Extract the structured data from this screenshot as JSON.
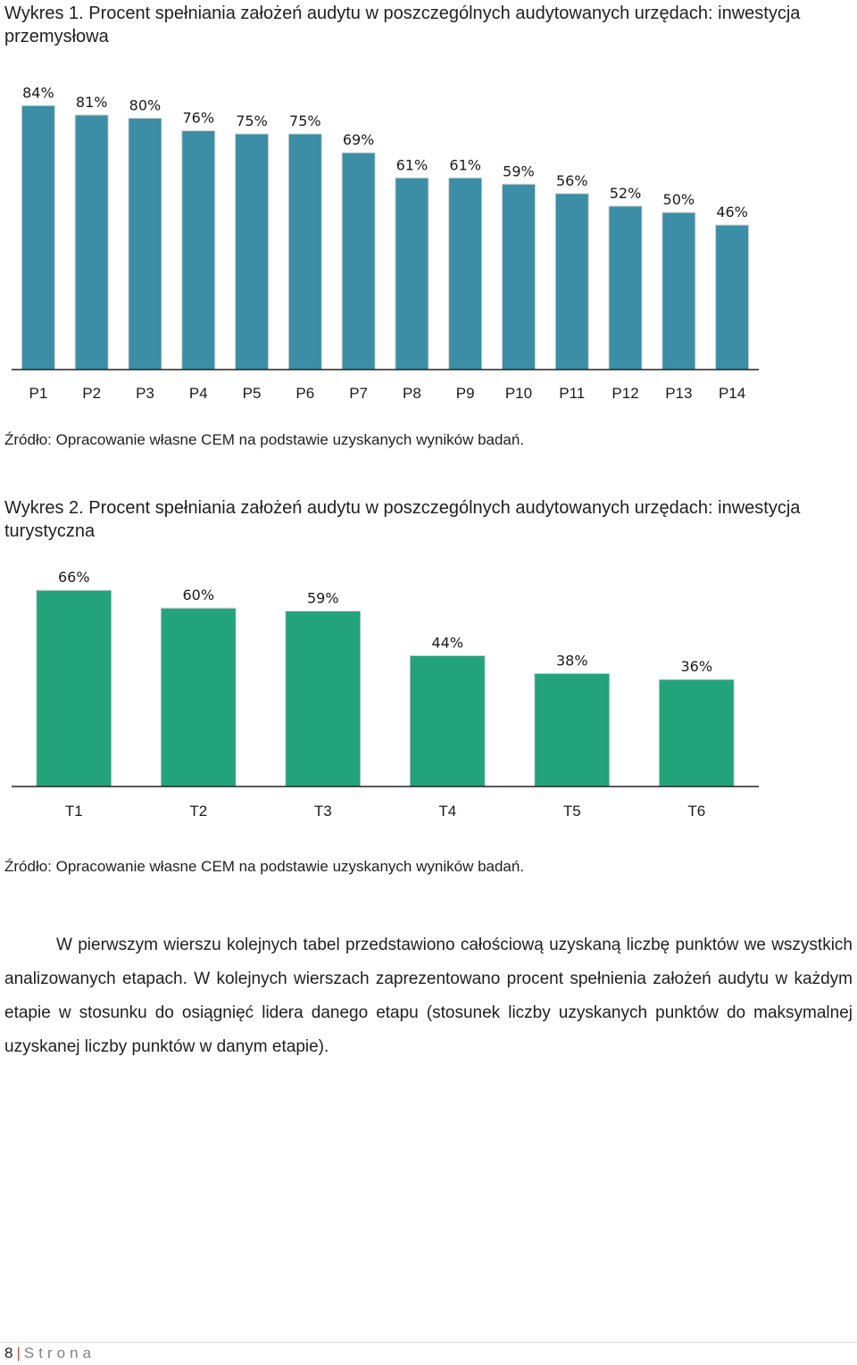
{
  "chart_data": [
    {
      "type": "bar",
      "title": "Wykres 1. Procent spełniania założeń audytu w poszczególnych audytowanych urzędach: inwestycja przemysłowa",
      "categories": [
        "P1",
        "P2",
        "P3",
        "P4",
        "P5",
        "P6",
        "P7",
        "P8",
        "P9",
        "P10",
        "P11",
        "P12",
        "P13",
        "P14"
      ],
      "values": [
        84,
        81,
        80,
        76,
        75,
        75,
        69,
        61,
        61,
        59,
        56,
        52,
        50,
        46
      ],
      "value_labels": [
        "84%",
        "81%",
        "80%",
        "76%",
        "75%",
        "75%",
        "69%",
        "61%",
        "61%",
        "59%",
        "56%",
        "52%",
        "50%",
        "46%"
      ],
      "ylim": [
        0,
        100
      ],
      "xlabel": "",
      "ylabel": "",
      "color": "#3b8ea5",
      "source": "Źródło: Opracowanie własne CEM na podstawie uzyskanych wyników badań."
    },
    {
      "type": "bar",
      "title": "Wykres 2. Procent spełniania założeń audytu w poszczególnych audytowanych urzędach: inwestycja turystyczna",
      "categories": [
        "T1",
        "T2",
        "T3",
        "T4",
        "T5",
        "T6"
      ],
      "values": [
        66,
        60,
        59,
        44,
        38,
        36
      ],
      "value_labels": [
        "66%",
        "60%",
        "59%",
        "44%",
        "38%",
        "36%"
      ],
      "ylim": [
        0,
        100
      ],
      "xlabel": "",
      "ylabel": "",
      "color": "#22a37a",
      "source": "Źródło: Opracowanie własne CEM na podstawie uzyskanych wyników badań."
    }
  ],
  "paragraph": "W pierwszym wierszu kolejnych tabel przedstawiono całościową uzyskaną liczbę punktów we wszystkich analizowanych etapach. W kolejnych wierszach zaprezentowano procent spełnienia założeń audytu w każdym etapie w stosunku do osiągnięć lidera danego etapu (stosunek liczby uzyskanych punktów do maksymalnej uzyskanej liczby punktów w danym etapie).",
  "footer": {
    "page_number": "8",
    "separator": "|",
    "label": "Strona"
  }
}
